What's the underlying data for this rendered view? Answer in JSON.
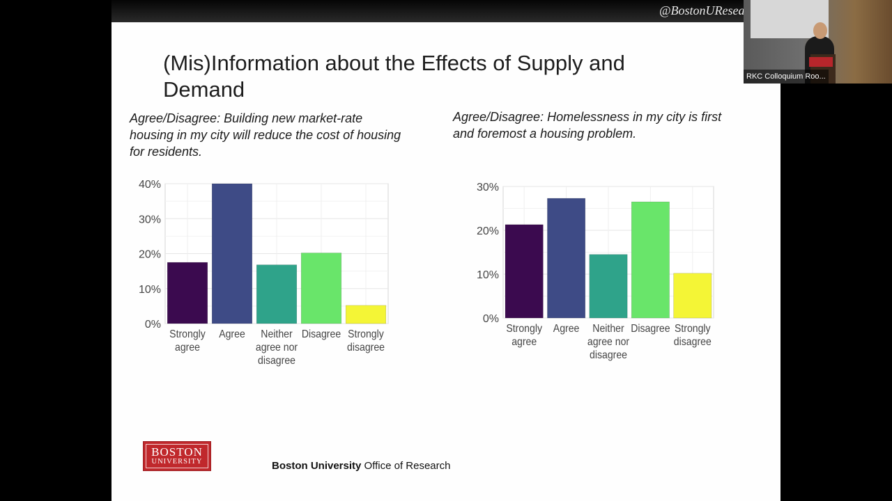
{
  "overlay": {
    "hashtag": "@BostonUResearch | #researchon",
    "participant_label": "RKC Colloquium Roo..."
  },
  "slide": {
    "title": "(Mis)Information about the Effects of Supply and Demand",
    "left_question": "Agree/Disagree: Building new market-rate housing in my city will reduce the cost of housing for residents.",
    "right_question": "Agree/Disagree: Homelessness in my city is first and foremost a housing problem.",
    "footer": {
      "org_bold": "Boston University",
      "org_rest": " Office of Research"
    },
    "logo": {
      "line1": "BOSTON",
      "line2": "UNIVERSITY"
    }
  },
  "chart_data": [
    {
      "type": "bar",
      "categories": [
        "Strongly agree",
        "Agree",
        "Neither agree nor disagree",
        "Disagree",
        "Strongly disagree"
      ],
      "values": [
        17.5,
        40,
        16.8,
        20.2,
        5.2
      ],
      "colors": [
        "#3b0a4f",
        "#3e4b86",
        "#2fa38a",
        "#69e56a",
        "#f4f536"
      ],
      "yticks": [
        "0%",
        "10%",
        "20%",
        "30%",
        "40%"
      ],
      "ylim": [
        0,
        40
      ],
      "grid": true,
      "title": "",
      "xlabel": "",
      "ylabel": ""
    },
    {
      "type": "bar",
      "categories": [
        "Strongly agree",
        "Agree",
        "Neither agree nor disagree",
        "Disagree",
        "Strongly disagree"
      ],
      "values": [
        21.3,
        27.3,
        14.5,
        26.5,
        10.2
      ],
      "colors": [
        "#3b0a4f",
        "#3e4b86",
        "#2fa38a",
        "#69e56a",
        "#f4f536"
      ],
      "yticks": [
        "0%",
        "10%",
        "20%",
        "30%"
      ],
      "ylim": [
        0,
        30
      ],
      "grid": true,
      "title": "",
      "xlabel": "",
      "ylabel": ""
    }
  ]
}
